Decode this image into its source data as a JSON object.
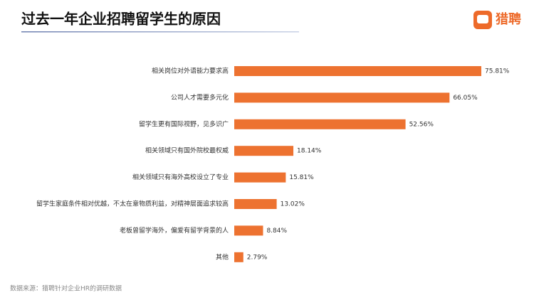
{
  "chart_data": {
    "type": "bar",
    "orientation": "horizontal",
    "title": "过去一年企业招聘留学生的原因",
    "brand": "猎聘",
    "source": "数据来源：猎聘针对企业HR的调研数据",
    "categories": [
      "相关岗位对外语能力要求高",
      "公司人才需要多元化",
      "留学生更有国际视野，见多识广",
      "相关领域只有国外院校最权威",
      "相关领域只有海外高校设立了专业",
      "留学生家庭条件相对优越，不太在意物质利益，对精神层面追求较高",
      "老板曾留学海外，偏爱有留学背景的人",
      "其他"
    ],
    "values": [
      75.81,
      66.05,
      52.56,
      18.14,
      15.81,
      13.02,
      8.84,
      2.79
    ],
    "value_labels": [
      "75.81%",
      "66.05%",
      "52.56%",
      "18.14%",
      "15.81%",
      "13.02%",
      "8.84%",
      "2.79%"
    ],
    "color": "#ed7230"
  }
}
